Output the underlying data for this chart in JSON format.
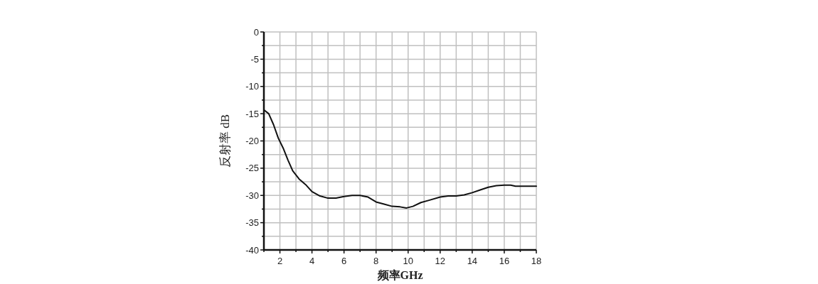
{
  "chart_data": {
    "type": "line",
    "xlabel": "频率GHz",
    "ylabel": "反射率  dB",
    "xlim": [
      1,
      18
    ],
    "ylim": [
      -40,
      0
    ],
    "xticks": [
      {
        "value": 1,
        "label": null
      },
      2,
      {
        "value": 3,
        "label": null
      },
      4,
      {
        "value": 5,
        "label": null
      },
      6,
      {
        "value": 7,
        "label": null
      },
      8,
      {
        "value": 9,
        "label": null
      },
      10,
      {
        "value": 11,
        "label": null
      },
      12,
      {
        "value": 13,
        "label": null
      },
      14,
      {
        "value": 15,
        "label": null
      },
      16,
      {
        "value": 17,
        "label": null
      },
      18
    ],
    "yticks": [
      -40,
      {
        "value": -37.5,
        "label": null
      },
      -35,
      {
        "value": -32.5,
        "label": null
      },
      -30,
      {
        "value": -27.5,
        "label": null
      },
      -25,
      {
        "value": -22.5,
        "label": null
      },
      -20,
      {
        "value": -17.5,
        "label": null
      },
      -15,
      {
        "value": -12.5,
        "label": null
      },
      -10,
      {
        "value": -7.5,
        "label": null
      },
      -5,
      {
        "value": -2.5,
        "label": null
      },
      0
    ],
    "grid": true,
    "series": [
      {
        "color": "#111111",
        "x": [
          1,
          1.3,
          1.6,
          1.9,
          2.2,
          2.5,
          2.8,
          3.2,
          3.6,
          4,
          4.5,
          5,
          5.5,
          6,
          6.5,
          7,
          7.5,
          8,
          8.5,
          9,
          9.5,
          9.9,
          10.3,
          10.8,
          11.3,
          12,
          12.5,
          13,
          13.5,
          14,
          14.5,
          15,
          15.5,
          16,
          16.4,
          16.7,
          17.2,
          18
        ],
        "values": [
          -14.3,
          -15,
          -17,
          -19.5,
          -21.3,
          -23.5,
          -25.5,
          -27,
          -28,
          -29.3,
          -30.1,
          -30.5,
          -30.5,
          -30.2,
          -30,
          -30,
          -30.3,
          -31.2,
          -31.6,
          -32,
          -32.1,
          -32.3,
          -32,
          -31.3,
          -30.9,
          -30.3,
          -30.1,
          -30.1,
          -29.9,
          -29.5,
          -29,
          -28.5,
          -28.2,
          -28.1,
          -28.1,
          -28.3,
          -28.3,
          -28.3
        ]
      }
    ]
  }
}
